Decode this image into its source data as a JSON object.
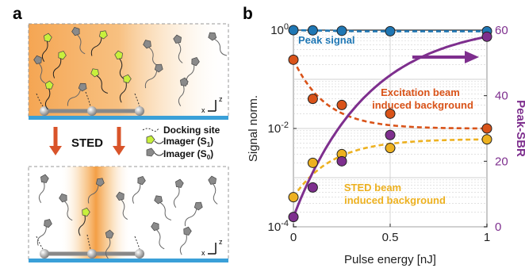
{
  "panel_a": {
    "letter": "a",
    "transition_label": "STED",
    "legend": {
      "docking": "Docking site",
      "imager_s1": "Imager (S",
      "imager_s1_sub": "1",
      "imager_s0": "Imager (S",
      "imager_s0_sub": "0",
      "close_paren": ")"
    },
    "axis_z": "z",
    "axis_x": "x"
  },
  "panel_b": {
    "letter": "b"
  },
  "chart_data": {
    "type": "line",
    "x_label": "Pulse energy [nJ]",
    "y_left_label": "Signal norm.",
    "y_right_label": "Peak-SBR",
    "x_range": [
      0,
      1
    ],
    "x_ticks": [
      0,
      0.5,
      1
    ],
    "x_tick_labels": [
      "0",
      "0.5",
      "1"
    ],
    "y_left_scale": "log",
    "y_left_range": [
      0.0001,
      1
    ],
    "y_left_ticks": [
      {
        "base": "10",
        "exp": "0"
      },
      {
        "base": "10",
        "exp": "-2"
      },
      {
        "base": "10",
        "exp": "-4"
      }
    ],
    "y_right_range": [
      0,
      60
    ],
    "y_right_ticks": [
      0,
      20,
      40,
      60
    ],
    "grid": true,
    "series": [
      {
        "name": "Peak signal",
        "axis": "left",
        "color": "#1f77b4",
        "x": [
          0,
          0.1,
          0.25,
          0.5,
          1
        ],
        "y": [
          1,
          0.99,
          0.97,
          0.95,
          0.95
        ]
      },
      {
        "name": "Excitation beam induced background",
        "axis": "left",
        "color": "#d95319",
        "x": [
          0,
          0.1,
          0.25,
          0.5,
          1
        ],
        "y": [
          0.25,
          0.04,
          0.03,
          0.02,
          0.01
        ]
      },
      {
        "name": "STED beam induced background",
        "axis": "left",
        "color": "#edb120",
        "x": [
          0,
          0.1,
          0.25,
          0.5,
          1
        ],
        "y": [
          0.0004,
          0.002,
          0.003,
          0.004,
          0.006
        ]
      },
      {
        "name": "Peak-SBR",
        "axis": "right",
        "color": "#7e2f8e",
        "x": [
          0,
          0.1,
          0.25,
          0.5,
          1
        ],
        "y": [
          3,
          12,
          20,
          28,
          58
        ]
      }
    ],
    "series_labels": {
      "peak": "Peak signal",
      "exc_line1": "Excitation beam",
      "exc_line2": "induced background",
      "sted_line1": "STED beam",
      "sted_line2": "induced background"
    }
  },
  "colors": {
    "glass": "#3aa0d8",
    "orange_glow": "#f5a34a",
    "imager_on": "#c8f03c",
    "imager_off": "#8a8a8a",
    "arrow": "#d9542a"
  }
}
